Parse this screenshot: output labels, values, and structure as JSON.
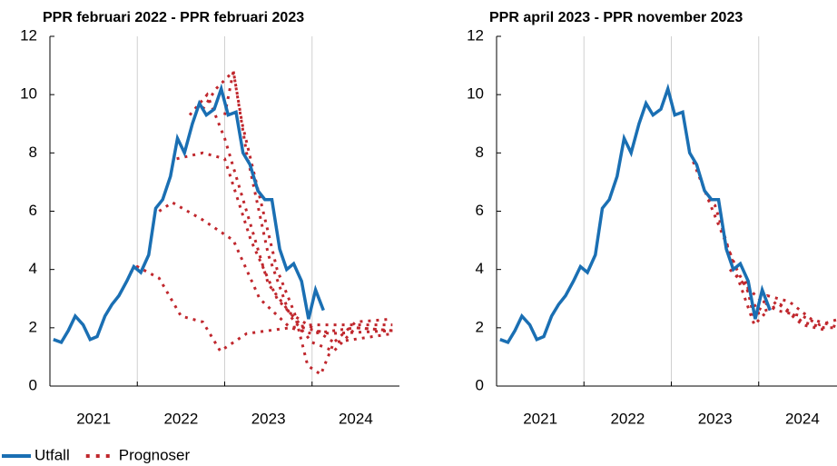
{
  "chart_data": [
    {
      "type": "line",
      "title": "PPR februari 2022 - PPR februari 2023",
      "xlim": [
        2021,
        2025
      ],
      "ylim": [
        0,
        12
      ],
      "yticks": [
        0,
        2,
        4,
        6,
        8,
        10,
        12
      ],
      "xticks": [
        {
          "value": 2021.5,
          "label": "2021"
        },
        {
          "value": 2022.5,
          "label": "2022"
        },
        {
          "value": 2023.5,
          "label": "2023"
        },
        {
          "value": 2024.5,
          "label": "2024"
        }
      ],
      "xgrid": [
        2022,
        2023,
        2024
      ],
      "series": [
        {
          "color": "#1a6fb3",
          "style": "solid",
          "x": [
            2021.04,
            2021.13,
            2021.21,
            2021.29,
            2021.38,
            2021.46,
            2021.54,
            2021.63,
            2021.71,
            2021.79,
            2021.88,
            2021.96,
            2022.04,
            2022.13,
            2022.21,
            2022.29,
            2022.38,
            2022.46,
            2022.54,
            2022.63,
            2022.71,
            2022.79,
            2022.88,
            2022.96,
            2023.04,
            2023.13,
            2023.21,
            2023.29,
            2023.38,
            2023.46,
            2023.54,
            2023.63,
            2023.71,
            2023.79,
            2023.88,
            2023.96,
            2024.04,
            2024.13
          ],
          "values": [
            1.6,
            1.5,
            1.9,
            2.4,
            2.1,
            1.6,
            1.7,
            2.4,
            2.8,
            3.1,
            3.6,
            4.1,
            3.9,
            4.5,
            6.1,
            6.4,
            7.2,
            8.5,
            8.0,
            9.0,
            9.7,
            9.3,
            9.5,
            10.2,
            9.3,
            9.4,
            8.0,
            7.6,
            6.7,
            6.4,
            6.4,
            4.7,
            4.0,
            4.2,
            3.6,
            2.3,
            3.3,
            2.6
          ]
        },
        {
          "color": "#c0272d",
          "style": "dotted",
          "x": [
            2021.92,
            2022.0,
            2022.25,
            2022.5,
            2022.75,
            2022.95,
            2023.25,
            2023.5,
            2023.75,
            2024.0,
            2024.5,
            2024.92
          ],
          "values": [
            3.9,
            4.1,
            3.7,
            2.4,
            2.2,
            1.2,
            1.8,
            1.9,
            2.0,
            2.1,
            2.1,
            2.1
          ]
        },
        {
          "color": "#c0272d",
          "style": "dotted",
          "x": [
            2022.25,
            2022.4,
            2022.75,
            2023.1,
            2023.4,
            2023.75,
            2024.0,
            2024.5,
            2024.92
          ],
          "values": [
            6.0,
            6.3,
            5.7,
            5.0,
            3.0,
            2.0,
            1.8,
            2.0,
            1.9
          ]
        },
        {
          "color": "#c0272d",
          "style": "dotted",
          "x": [
            2022.45,
            2022.75,
            2023.0,
            2023.3,
            2023.6,
            2023.9,
            2024.2,
            2024.92
          ],
          "values": [
            7.8,
            8.0,
            7.8,
            5.0,
            3.0,
            2.0,
            1.8,
            1.9
          ]
        },
        {
          "color": "#c0272d",
          "style": "dotted",
          "x": [
            2022.6,
            2022.8,
            2023.0,
            2023.25,
            2023.5,
            2023.75,
            2024.0,
            2024.25,
            2024.92
          ],
          "values": [
            9.3,
            10.0,
            8.5,
            6.0,
            3.5,
            2.5,
            2.0,
            1.5,
            1.8
          ]
        },
        {
          "color": "#c0272d",
          "style": "dotted",
          "x": [
            2022.75,
            2022.9,
            2023.1,
            2023.25,
            2023.5,
            2023.75,
            2024.0,
            2024.25,
            2024.5,
            2024.92
          ],
          "values": [
            9.5,
            10.2,
            10.8,
            8.0,
            4.5,
            2.4,
            1.5,
            1.2,
            2.0,
            1.9
          ]
        },
        {
          "color": "#c0272d",
          "style": "dotted",
          "x": [
            2023.0,
            2023.1,
            2023.2,
            2023.4,
            2023.6,
            2023.8,
            2023.95,
            2024.1,
            2024.25,
            2024.5,
            2024.92
          ],
          "values": [
            9.3,
            10.8,
            9.0,
            6.5,
            4.0,
            2.5,
            0.7,
            0.4,
            1.5,
            2.2,
            2.3
          ]
        }
      ]
    },
    {
      "type": "line",
      "title": "PPR april 2023 - PPR november 2023",
      "xlim": [
        2021,
        2025
      ],
      "ylim": [
        0,
        12
      ],
      "yticks": [
        0,
        2,
        4,
        6,
        8,
        10,
        12
      ],
      "xticks": [
        {
          "value": 2021.5,
          "label": "2021"
        },
        {
          "value": 2022.5,
          "label": "2022"
        },
        {
          "value": 2023.5,
          "label": "2023"
        },
        {
          "value": 2024.5,
          "label": "2024"
        }
      ],
      "xgrid": [
        2022,
        2023,
        2024
      ],
      "series": [
        {
          "color": "#1a6fb3",
          "style": "solid",
          "x": [
            2021.04,
            2021.13,
            2021.21,
            2021.29,
            2021.38,
            2021.46,
            2021.54,
            2021.63,
            2021.71,
            2021.79,
            2021.88,
            2021.96,
            2022.04,
            2022.13,
            2022.21,
            2022.29,
            2022.38,
            2022.46,
            2022.54,
            2022.63,
            2022.71,
            2022.79,
            2022.88,
            2022.96,
            2023.04,
            2023.13,
            2023.21,
            2023.29,
            2023.38,
            2023.46,
            2023.54,
            2023.63,
            2023.71,
            2023.79,
            2023.88,
            2023.96,
            2024.04,
            2024.13
          ],
          "values": [
            1.6,
            1.5,
            1.9,
            2.4,
            2.1,
            1.6,
            1.7,
            2.4,
            2.8,
            3.1,
            3.6,
            4.1,
            3.9,
            4.5,
            6.1,
            6.4,
            7.2,
            8.5,
            8.0,
            9.0,
            9.7,
            9.3,
            9.5,
            10.2,
            9.3,
            9.4,
            8.0,
            7.6,
            6.7,
            6.4,
            6.4,
            4.7,
            4.0,
            4.2,
            3.6,
            2.3,
            3.3,
            2.6
          ]
        },
        {
          "color": "#c0272d",
          "style": "dotted",
          "x": [
            2023.25,
            2023.45,
            2023.75,
            2024.0,
            2024.25,
            2024.5,
            2024.75,
            2024.92
          ],
          "values": [
            7.7,
            6.2,
            4.0,
            2.5,
            2.8,
            2.2,
            2.0,
            2.0
          ]
        },
        {
          "color": "#c0272d",
          "style": "dotted",
          "x": [
            2023.42,
            2023.5,
            2023.75,
            2023.95,
            2024.2,
            2024.5,
            2024.8
          ],
          "values": [
            6.4,
            6.2,
            3.8,
            2.1,
            2.9,
            2.1,
            1.9
          ]
        },
        {
          "color": "#c0272d",
          "style": "dotted",
          "x": [
            2023.67,
            2023.8,
            2024.0,
            2024.2,
            2024.5,
            2024.7,
            2024.92
          ],
          "values": [
            4.0,
            3.6,
            3.0,
            2.6,
            2.4,
            2.1,
            2.3
          ]
        },
        {
          "color": "#c0272d",
          "style": "dotted",
          "x": [
            2023.85,
            2023.95,
            2024.1,
            2024.35,
            2024.6,
            2024.92
          ],
          "values": [
            3.6,
            2.3,
            3.1,
            2.9,
            2.3,
            2.0
          ]
        }
      ]
    }
  ],
  "legend": [
    {
      "name": "Utfall",
      "color": "#1a6fb3",
      "style": "solid"
    },
    {
      "name": "Prognoser",
      "color": "#c0272d",
      "style": "dotted"
    }
  ]
}
